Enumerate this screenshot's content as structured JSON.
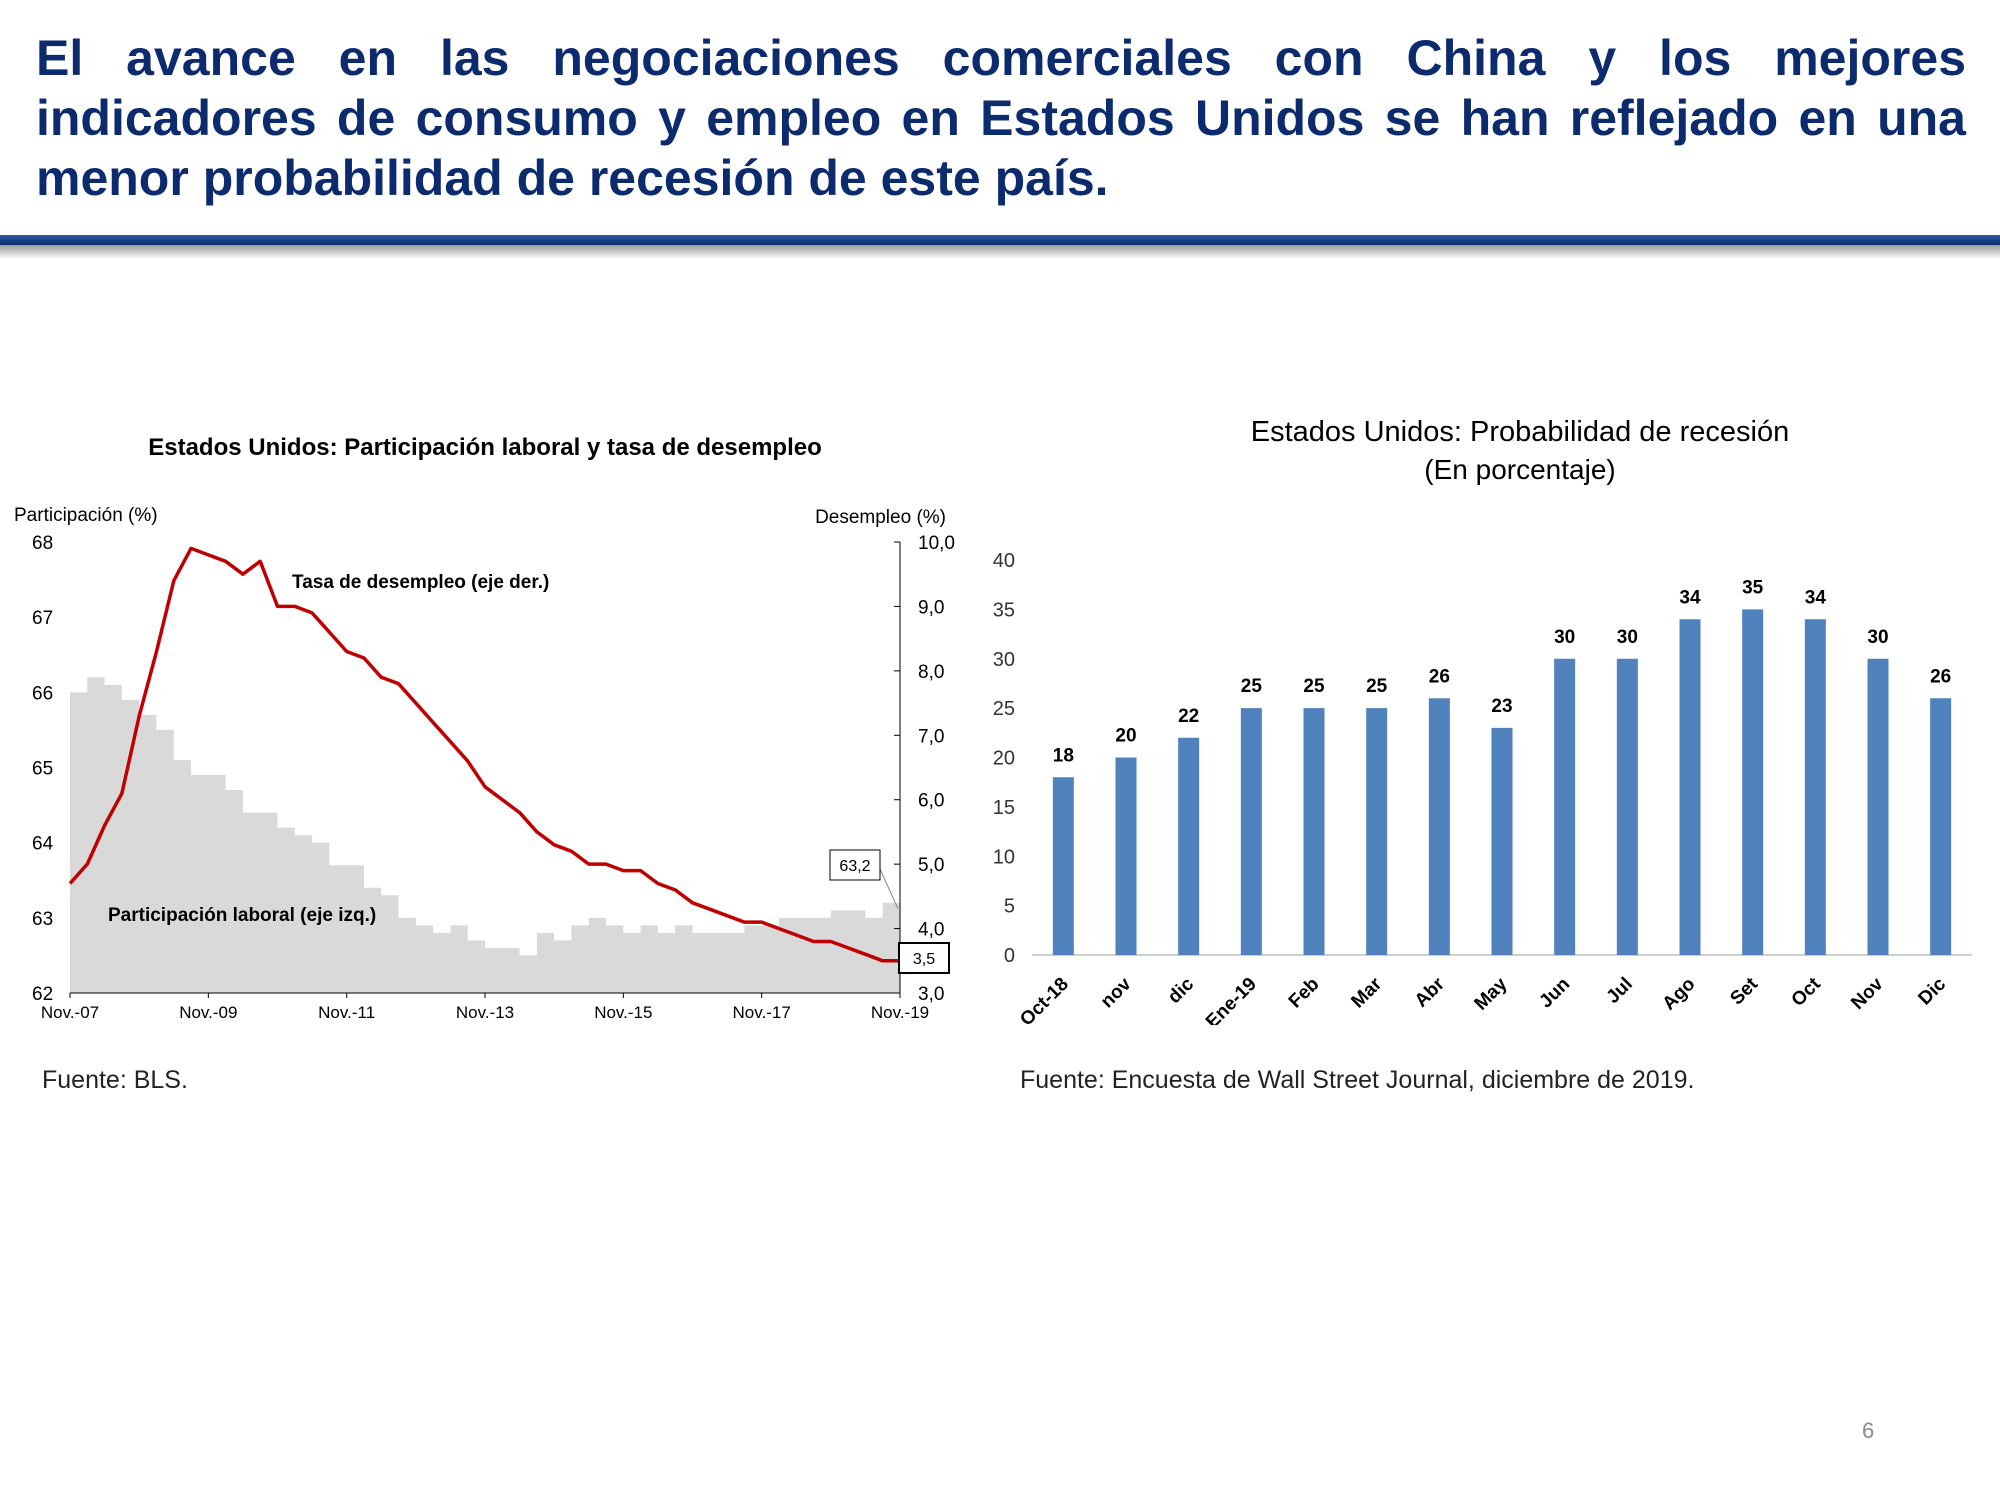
{
  "header": {
    "title": "El avance en las negociaciones comerciales con China y los mejores indicadores de consumo y empleo en Estados Unidos se han reflejado en una menor probabilidad de recesión de este país."
  },
  "colors": {
    "title": "#0c2b6e",
    "unemployment_line": "#c00000",
    "participation_area": "#d9d9d9",
    "bars": "#4f81bd"
  },
  "chart_data": [
    {
      "type": "line",
      "title": "Estados Unidos: Participación laboral y tasa de desempleo",
      "y_left_label": "Participación (%)",
      "y_right_label": "Desempleo (%)",
      "y_left_ticks": [
        "68",
        "67",
        "66",
        "65",
        "64",
        "63",
        "62"
      ],
      "y_right_ticks": [
        "10,0",
        "9,0",
        "8,0",
        "7,0",
        "6,0",
        "5,0",
        "4,0",
        "3,0"
      ],
      "x_ticks": [
        "Nov.-07",
        "Nov.-09",
        "Nov.-11",
        "Nov.-13",
        "Nov.-15",
        "Nov.-17",
        "Nov.-19"
      ],
      "y_left_range": [
        62,
        68
      ],
      "y_right_range": [
        3.0,
        10.0
      ],
      "x_range": [
        0,
        144
      ],
      "series": [
        {
          "name": "Participación laboral (eje izq.)",
          "kind": "area",
          "axis": "left",
          "x": [
            0,
            3,
            6,
            9,
            12,
            15,
            18,
            21,
            24,
            27,
            30,
            33,
            36,
            39,
            42,
            45,
            48,
            51,
            54,
            57,
            60,
            63,
            66,
            69,
            72,
            75,
            78,
            81,
            84,
            87,
            90,
            93,
            96,
            99,
            102,
            105,
            108,
            111,
            114,
            117,
            120,
            123,
            126,
            129,
            132,
            135,
            138,
            141,
            144
          ],
          "values": [
            66.0,
            66.2,
            66.1,
            65.9,
            65.7,
            65.5,
            65.1,
            64.9,
            64.9,
            64.7,
            64.4,
            64.4,
            64.2,
            64.1,
            64.0,
            63.7,
            63.7,
            63.4,
            63.3,
            63.0,
            62.9,
            62.8,
            62.9,
            62.7,
            62.6,
            62.6,
            62.5,
            62.8,
            62.7,
            62.9,
            63.0,
            62.9,
            62.8,
            62.9,
            62.8,
            62.9,
            62.8,
            62.8,
            62.8,
            62.9,
            62.9,
            63.0,
            63.0,
            63.0,
            63.1,
            63.1,
            63.0,
            63.2,
            63.2
          ],
          "annotation": "63,2"
        },
        {
          "name": "Tasa de desempleo (eje der.)",
          "kind": "line",
          "axis": "right",
          "x": [
            0,
            3,
            6,
            9,
            12,
            15,
            18,
            21,
            24,
            27,
            30,
            33,
            36,
            39,
            42,
            45,
            48,
            51,
            54,
            57,
            60,
            63,
            66,
            69,
            72,
            75,
            78,
            81,
            84,
            87,
            90,
            93,
            96,
            99,
            102,
            105,
            108,
            111,
            114,
            117,
            120,
            123,
            126,
            129,
            132,
            135,
            138,
            141,
            144
          ],
          "values": [
            4.7,
            5.0,
            5.6,
            6.1,
            7.3,
            8.3,
            9.4,
            9.9,
            9.8,
            9.7,
            9.5,
            9.7,
            9.0,
            9.0,
            8.9,
            8.6,
            8.3,
            8.2,
            7.9,
            7.8,
            7.5,
            7.2,
            6.9,
            6.6,
            6.2,
            6.0,
            5.8,
            5.5,
            5.3,
            5.2,
            5.0,
            5.0,
            4.9,
            4.9,
            4.7,
            4.6,
            4.4,
            4.3,
            4.2,
            4.1,
            4.1,
            4.0,
            3.9,
            3.8,
            3.8,
            3.7,
            3.6,
            3.5,
            3.5
          ],
          "annotation": "3,5"
        }
      ],
      "source": "Fuente: BLS."
    },
    {
      "type": "bar",
      "title": "Estados Unidos: Probabilidad de recesión",
      "subtitle": "(En porcentaje)",
      "categories": [
        "Oct-18",
        "nov",
        "dic",
        "Ene-19",
        "Feb",
        "Mar",
        "Abr",
        "May",
        "Jun",
        "Jul",
        "Ago",
        "Set",
        "Oct",
        "Nov",
        "Dic"
      ],
      "values": [
        18,
        20,
        22,
        25,
        25,
        25,
        26,
        23,
        30,
        30,
        34,
        35,
        34,
        30,
        26
      ],
      "data_labels": [
        "18",
        "20",
        "22",
        "25",
        "25",
        "25",
        "26",
        "23",
        "30",
        "30",
        "34",
        "35",
        "34",
        "30",
        "26"
      ],
      "ylim": [
        0,
        40
      ],
      "y_ticks": [
        "0",
        "5",
        "10",
        "15",
        "20",
        "25",
        "30",
        "35",
        "40"
      ],
      "grid": false,
      "source": "Fuente:  Encuesta de Wall Street Journal, diciembre de 2019."
    }
  ],
  "page_number": "6"
}
